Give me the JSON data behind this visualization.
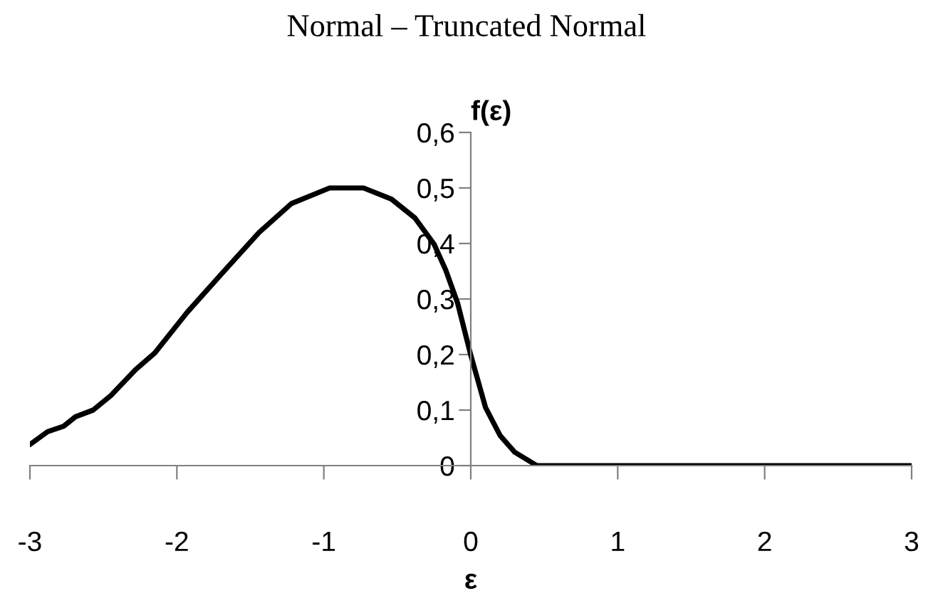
{
  "chart_data": {
    "type": "line",
    "title": "Normal – Truncated Normal",
    "xlabel": "ε",
    "ylabel": "f(ε)",
    "series": [
      {
        "color": "#000000",
        "x": [
          -3,
          -2.88,
          -2.77,
          -2.69,
          -2.57,
          -2.45,
          -2.28,
          -2.15,
          -1.93,
          -1.7,
          -1.44,
          -1.22,
          -0.96,
          -0.73,
          -0.54,
          -0.38,
          -0.25,
          -0.17,
          -0.09,
          0,
          0.1,
          0.2,
          0.3,
          0.45,
          3
        ],
        "values": [
          0.038,
          0.061,
          0.071,
          0.088,
          0.1,
          0.126,
          0.173,
          0.203,
          0.276,
          0.344,
          0.42,
          0.472,
          0.5,
          0.5,
          0.48,
          0.446,
          0.399,
          0.352,
          0.293,
          0.199,
          0.105,
          0.054,
          0.024,
          0,
          0
        ]
      }
    ],
    "xlim": [
      -3,
      3
    ],
    "ylim": [
      0,
      0.6
    ],
    "xticks": [
      -3,
      -2,
      -1,
      0,
      1,
      2,
      3
    ],
    "yticks": [
      0,
      {
        "value": 0.1,
        "label": "0,1"
      },
      {
        "value": 0.2,
        "label": "0,2"
      },
      {
        "value": 0.3,
        "label": "0,3"
      },
      {
        "value": 0.4,
        "label": "0,4"
      },
      {
        "value": 0.5,
        "label": "0,5"
      },
      {
        "value": 0.6,
        "label": "0,6"
      }
    ],
    "grid": false,
    "legend": false,
    "marker": "none",
    "line_style": "solid"
  }
}
